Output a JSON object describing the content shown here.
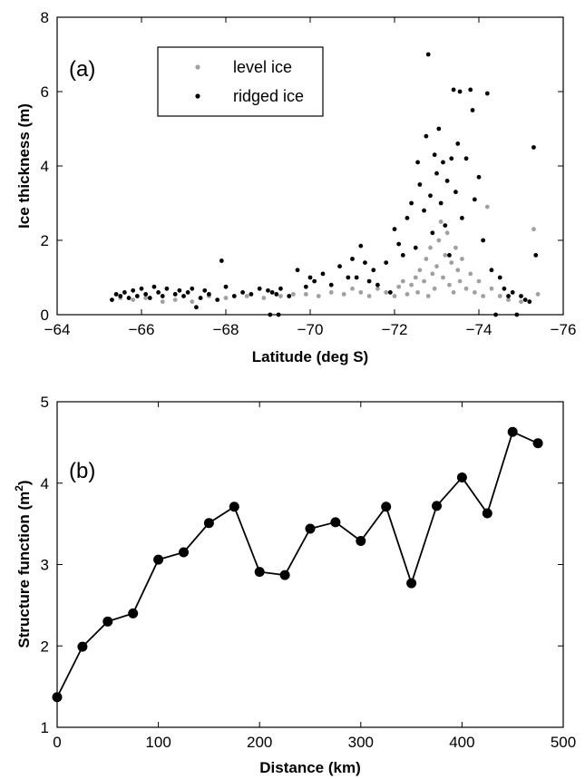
{
  "chart_data": [
    {
      "type": "scatter",
      "panel_label": "(a)",
      "xlabel": "Latitude (deg S)",
      "ylabel": "Ice thickness (m)",
      "xlim": [
        -64,
        -76
      ],
      "ylim": [
        0,
        8
      ],
      "xticks": [
        "−64",
        "−66",
        "−68",
        "−70",
        "−72",
        "−74",
        "−76"
      ],
      "yticks": [
        "0",
        "2",
        "4",
        "6",
        "8"
      ],
      "legend_position": "top-left",
      "colors": {
        "level": "#a0a0a0",
        "ridged": "#000000"
      },
      "series": [
        {
          "name": "level ice",
          "points": [
            [
              -65.5,
              0.45
            ],
            [
              -65.8,
              0.4
            ],
            [
              -66.1,
              0.45
            ],
            [
              -66.5,
              0.35
            ],
            [
              -66.8,
              0.4
            ],
            [
              -67.2,
              0.35
            ],
            [
              -67.6,
              0.5
            ],
            [
              -68.0,
              0.45
            ],
            [
              -68.5,
              0.5
            ],
            [
              -68.9,
              0.45
            ],
            [
              -69.3,
              0.5
            ],
            [
              -69.6,
              0.55
            ],
            [
              -69.9,
              0.55
            ],
            [
              -70.2,
              0.5
            ],
            [
              -70.5,
              0.6
            ],
            [
              -70.8,
              0.55
            ],
            [
              -71.0,
              0.7
            ],
            [
              -71.2,
              0.6
            ],
            [
              -71.4,
              0.5
            ],
            [
              -71.6,
              0.7
            ],
            [
              -71.8,
              0.6
            ],
            [
              -72.0,
              0.5
            ],
            [
              -72.1,
              0.75
            ],
            [
              -72.2,
              0.9
            ],
            [
              -72.3,
              0.55
            ],
            [
              -72.4,
              0.8
            ],
            [
              -72.5,
              1.0
            ],
            [
              -72.55,
              0.6
            ],
            [
              -72.6,
              1.2
            ],
            [
              -72.7,
              0.9
            ],
            [
              -72.75,
              1.5
            ],
            [
              -72.8,
              0.5
            ],
            [
              -72.85,
              1.8
            ],
            [
              -72.9,
              1.1
            ],
            [
              -72.95,
              0.7
            ],
            [
              -73.0,
              1.3
            ],
            [
              -73.05,
              2.0
            ],
            [
              -73.1,
              2.5
            ],
            [
              -73.15,
              1.0
            ],
            [
              -73.2,
              1.6
            ],
            [
              -73.25,
              2.2
            ],
            [
              -73.3,
              0.8
            ],
            [
              -73.35,
              1.4
            ],
            [
              -73.4,
              0.6
            ],
            [
              -73.45,
              1.8
            ],
            [
              -73.5,
              1.2
            ],
            [
              -73.55,
              0.9
            ],
            [
              -73.6,
              1.5
            ],
            [
              -73.7,
              0.7
            ],
            [
              -73.8,
              1.1
            ],
            [
              -73.9,
              0.6
            ],
            [
              -74.0,
              0.9
            ],
            [
              -74.1,
              0.5
            ],
            [
              -74.2,
              2.9
            ],
            [
              -74.3,
              0.7
            ],
            [
              -74.5,
              0.5
            ],
            [
              -74.7,
              0.4
            ],
            [
              -75.0,
              0.35
            ],
            [
              -75.3,
              2.3
            ],
            [
              -75.4,
              0.55
            ]
          ]
        },
        {
          "name": "ridged ice",
          "points": [
            [
              -65.3,
              0.4
            ],
            [
              -65.4,
              0.55
            ],
            [
              -65.5,
              0.5
            ],
            [
              -65.6,
              0.6
            ],
            [
              -65.7,
              0.45
            ],
            [
              -65.8,
              0.65
            ],
            [
              -65.9,
              0.5
            ],
            [
              -66.0,
              0.7
            ],
            [
              -66.1,
              0.55
            ],
            [
              -66.2,
              0.45
            ],
            [
              -66.3,
              0.75
            ],
            [
              -66.4,
              0.6
            ],
            [
              -66.5,
              0.5
            ],
            [
              -66.6,
              0.7
            ],
            [
              -66.8,
              0.55
            ],
            [
              -66.9,
              0.65
            ],
            [
              -67.0,
              0.5
            ],
            [
              -67.1,
              0.6
            ],
            [
              -67.2,
              0.7
            ],
            [
              -67.3,
              0.2
            ],
            [
              -67.4,
              0.45
            ],
            [
              -67.5,
              0.65
            ],
            [
              -67.6,
              0.55
            ],
            [
              -67.8,
              0.4
            ],
            [
              -67.9,
              1.45
            ],
            [
              -68.0,
              0.75
            ],
            [
              -68.2,
              0.5
            ],
            [
              -68.4,
              0.6
            ],
            [
              -68.6,
              0.55
            ],
            [
              -68.8,
              0.7
            ],
            [
              -69.0,
              0.65
            ],
            [
              -69.05,
              0.0
            ],
            [
              -69.1,
              0.6
            ],
            [
              -69.2,
              0.55
            ],
            [
              -69.25,
              0.0
            ],
            [
              -69.3,
              0.7
            ],
            [
              -69.5,
              0.5
            ],
            [
              -69.7,
              1.2
            ],
            [
              -69.9,
              0.75
            ],
            [
              -70.0,
              1.0
            ],
            [
              -70.1,
              0.9
            ],
            [
              -70.3,
              1.1
            ],
            [
              -70.5,
              0.8
            ],
            [
              -70.7,
              1.3
            ],
            [
              -70.9,
              1.0
            ],
            [
              -71.0,
              1.5
            ],
            [
              -71.1,
              1.0
            ],
            [
              -71.2,
              1.85
            ],
            [
              -71.3,
              1.4
            ],
            [
              -71.4,
              0.9
            ],
            [
              -71.5,
              1.2
            ],
            [
              -71.6,
              0.8
            ],
            [
              -71.8,
              1.4
            ],
            [
              -71.9,
              0.6
            ],
            [
              -72.0,
              2.3
            ],
            [
              -72.1,
              1.9
            ],
            [
              -72.2,
              1.6
            ],
            [
              -72.3,
              2.6
            ],
            [
              -72.4,
              3.0
            ],
            [
              -72.5,
              1.8
            ],
            [
              -72.55,
              4.1
            ],
            [
              -72.6,
              3.5
            ],
            [
              -72.7,
              2.8
            ],
            [
              -72.75,
              4.8
            ],
            [
              -72.8,
              7.0
            ],
            [
              -72.85,
              3.2
            ],
            [
              -72.9,
              2.2
            ],
            [
              -72.95,
              4.3
            ],
            [
              -73.0,
              3.8
            ],
            [
              -73.05,
              5.0
            ],
            [
              -73.1,
              3.0
            ],
            [
              -73.15,
              4.1
            ],
            [
              -73.2,
              2.4
            ],
            [
              -73.25,
              3.6
            ],
            [
              -73.3,
              1.6
            ],
            [
              -73.35,
              4.2
            ],
            [
              -73.4,
              6.05
            ],
            [
              -73.45,
              3.3
            ],
            [
              -73.5,
              4.6
            ],
            [
              -73.55,
              6.0
            ],
            [
              -73.6,
              2.6
            ],
            [
              -73.7,
              4.2
            ],
            [
              -73.8,
              6.05
            ],
            [
              -73.85,
              5.5
            ],
            [
              -73.9,
              3.1
            ],
            [
              -74.0,
              3.7
            ],
            [
              -74.1,
              2.0
            ],
            [
              -74.2,
              5.95
            ],
            [
              -74.3,
              1.2
            ],
            [
              -74.4,
              0.0
            ],
            [
              -74.5,
              1.0
            ],
            [
              -74.6,
              0.7
            ],
            [
              -74.7,
              0.5
            ],
            [
              -74.8,
              0.6
            ],
            [
              -74.9,
              0.0
            ],
            [
              -75.0,
              0.5
            ],
            [
              -75.1,
              0.4
            ],
            [
              -75.2,
              0.35
            ],
            [
              -75.3,
              4.5
            ],
            [
              -75.35,
              1.6
            ]
          ]
        }
      ]
    },
    {
      "type": "line",
      "panel_label": "(b)",
      "xlabel": "Distance (km)",
      "ylabel_main": "Structure function (m",
      "ylabel_sup": "2",
      "ylabel_tail": ")",
      "xlim": [
        0,
        500
      ],
      "ylim": [
        1,
        5
      ],
      "xticks": [
        "0",
        "100",
        "200",
        "300",
        "400",
        "500"
      ],
      "yticks": [
        "1",
        "2",
        "3",
        "4",
        "5"
      ],
      "color": "#000000",
      "x": [
        0,
        25,
        50,
        75,
        100,
        125,
        150,
        175,
        200,
        225,
        250,
        275,
        300,
        325,
        350,
        375,
        400,
        425,
        450,
        475
      ],
      "y": [
        1.37,
        1.99,
        2.3,
        2.4,
        3.06,
        3.15,
        3.51,
        3.71,
        2.91,
        2.87,
        3.44,
        3.52,
        3.29,
        3.71,
        2.77,
        3.72,
        4.07,
        3.63,
        4.63,
        4.49
      ]
    }
  ]
}
